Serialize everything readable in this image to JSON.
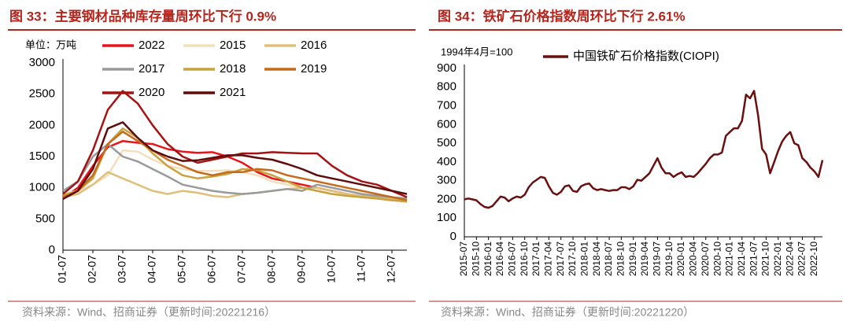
{
  "chart_data": [
    {
      "type": "line",
      "title": "图 33：主要钢材品种库存量周环比下行 0.9%",
      "unit_label": "单位：万吨",
      "source": "资料来源：Wind、招商证券（更新时间:20221216）",
      "legend": "top",
      "ylim": [
        0,
        3000
      ],
      "yticks": [
        0,
        500,
        1000,
        1500,
        2000,
        2500,
        3000
      ],
      "categories": [
        "01-07",
        null,
        "02-07",
        null,
        "03-07",
        null,
        "04-07",
        null,
        "05-07",
        null,
        "06-07",
        null,
        "07-07",
        null,
        "08-07",
        null,
        "09-07",
        null,
        "10-07",
        null,
        "11-07",
        null,
        "12-07",
        null
      ],
      "series": [
        {
          "name": "2022",
          "color": "#e8141b",
          "values": [
            830,
            1000,
            1350,
            1650,
            1750,
            1720,
            1700,
            1620,
            1580,
            1560,
            1570,
            1500,
            1400,
            1250,
            1150,
            1100,
            1050,
            1000,
            950,
            900,
            850,
            830,
            800,
            780
          ]
        },
        {
          "name": "2015",
          "color": "#f2dfbb",
          "values": [
            900,
            950,
            1050,
            1200,
            1600,
            1580,
            1450,
            1350,
            1300,
            1270,
            1270,
            1280,
            1250,
            1200,
            1100,
            1050,
            1000,
            950,
            900,
            880,
            870,
            850,
            820,
            800
          ]
        },
        {
          "name": "2016",
          "color": "#dfc07a",
          "values": [
            850,
            900,
            1050,
            1250,
            1150,
            1050,
            950,
            900,
            950,
            920,
            870,
            850,
            900,
            920,
            950,
            980,
            1000,
            1000,
            950,
            900,
            870,
            850,
            830,
            800
          ]
        },
        {
          "name": "2017",
          "color": "#9a9a9a",
          "values": [
            950,
            1100,
            1500,
            1700,
            1500,
            1420,
            1300,
            1180,
            1050,
            1000,
            950,
            920,
            900,
            920,
            950,
            980,
            950,
            1050,
            1000,
            950,
            900,
            870,
            850,
            830
          ]
        },
        {
          "name": "2018",
          "color": "#c9a23e",
          "values": [
            880,
            950,
            1150,
            1700,
            1950,
            1800,
            1550,
            1350,
            1200,
            1150,
            1180,
            1220,
            1300,
            1280,
            1200,
            1100,
            1000,
            950,
            900,
            870,
            850,
            830,
            800,
            780
          ]
        },
        {
          "name": "2019",
          "color": "#c56a1c",
          "values": [
            850,
            950,
            1200,
            1700,
            1900,
            1750,
            1600,
            1450,
            1350,
            1250,
            1200,
            1250,
            1250,
            1300,
            1280,
            1200,
            1150,
            1100,
            1050,
            1000,
            950,
            900,
            850,
            800
          ]
        },
        {
          "name": "2020",
          "color": "#a51212",
          "values": [
            900,
            1100,
            1600,
            2250,
            2550,
            2350,
            2000,
            1700,
            1500,
            1400,
            1450,
            1500,
            1550,
            1550,
            1570,
            1560,
            1550,
            1550,
            1350,
            1200,
            1100,
            1050,
            950,
            850
          ]
        },
        {
          "name": "2021",
          "color": "#5e0c0c",
          "values": [
            820,
            950,
            1300,
            1950,
            2050,
            1800,
            1600,
            1500,
            1430,
            1440,
            1480,
            1520,
            1520,
            1480,
            1450,
            1380,
            1300,
            1200,
            1150,
            1100,
            1050,
            1000,
            950,
            900
          ]
        }
      ]
    },
    {
      "type": "line",
      "title": "图 34：铁矿石价格指数周环比下行 2.61%",
      "unit_label": "1994年4月=100",
      "source": "资料来源：Wind、招商证券（更新时间:20221220）",
      "legend": "top",
      "ylim": [
        0,
        900
      ],
      "yticks": [
        0,
        100,
        200,
        300,
        400,
        500,
        600,
        700,
        800,
        900
      ],
      "categories": [
        "2015-07",
        null,
        null,
        "2015-10",
        null,
        null,
        "2016-01",
        null,
        null,
        "2016-04",
        null,
        null,
        "2016-07",
        null,
        null,
        "2016-10",
        null,
        null,
        "2017-01",
        null,
        null,
        "2017-04",
        null,
        null,
        "2017-07",
        null,
        null,
        "2017-10",
        null,
        null,
        "2018-01",
        null,
        null,
        "2018-04",
        null,
        null,
        "2018-07",
        null,
        null,
        "2018-10",
        null,
        null,
        "2019-01",
        null,
        null,
        "2019-04",
        null,
        null,
        "2019-07",
        null,
        null,
        "2019-10",
        null,
        null,
        "2020-01",
        null,
        null,
        "2020-04",
        null,
        null,
        "2020-07",
        null,
        null,
        "2020-10",
        null,
        null,
        "2021-01",
        null,
        null,
        "2021-04",
        null,
        null,
        "2021-07",
        null,
        null,
        "2021-10",
        null,
        null,
        "2022-01",
        null,
        null,
        "2022-04",
        null,
        null,
        "2022-07",
        null,
        null,
        "2022-10",
        null,
        null
      ],
      "series": [
        {
          "name": "中国铁矿石价格指数(CIOPI)",
          "color": "#6b0e0e",
          "values": [
            200,
            205,
            200,
            195,
            175,
            160,
            155,
            165,
            190,
            215,
            210,
            190,
            205,
            215,
            210,
            225,
            265,
            290,
            305,
            320,
            315,
            270,
            235,
            225,
            240,
            270,
            275,
            245,
            240,
            270,
            280,
            285,
            260,
            250,
            255,
            250,
            245,
            250,
            250,
            265,
            265,
            255,
            270,
            305,
            300,
            320,
            340,
            380,
            420,
            370,
            340,
            340,
            320,
            335,
            345,
            320,
            325,
            320,
            340,
            365,
            390,
            420,
            440,
            440,
            450,
            540,
            560,
            580,
            580,
            620,
            760,
            740,
            780,
            650,
            470,
            440,
            340,
            400,
            460,
            510,
            540,
            560,
            500,
            490,
            420,
            400,
            370,
            350,
            320,
            410
          ]
        }
      ]
    }
  ]
}
